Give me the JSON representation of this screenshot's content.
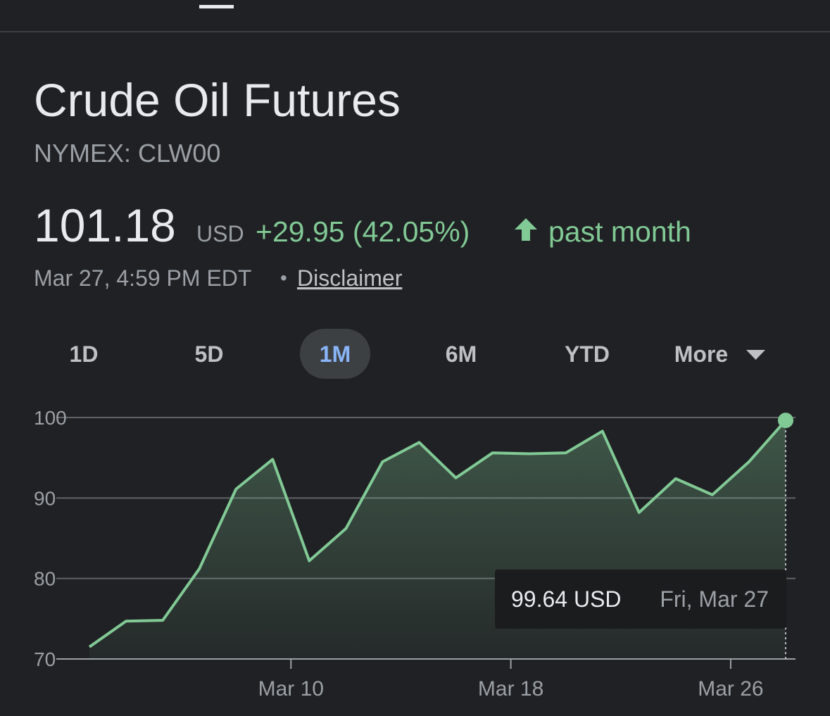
{
  "header": {
    "title": "Crude Oil Futures",
    "exchange": "NYMEX: CLW00",
    "price": "101.18",
    "currency": "USD",
    "change": "+29.95 (42.05%)",
    "period": "past month",
    "timestamp": "Mar 27, 4:59 PM EDT",
    "separator": "•",
    "disclaimer": "Disclaimer"
  },
  "ranges": {
    "items": [
      "1D",
      "5D",
      "1M",
      "6M",
      "YTD",
      "More"
    ],
    "selected": 2
  },
  "chart_data": {
    "type": "line",
    "color": "#81c995",
    "values": [
      71.5,
      74.7,
      74.8,
      81.2,
      91.1,
      94.8,
      82.2,
      86.2,
      94.5,
      96.9,
      92.5,
      95.6,
      95.5,
      95.6,
      98.3,
      88.2,
      92.4,
      90.4,
      94.5,
      99.64
    ],
    "xlim": [
      0,
      19
    ],
    "xticks": [
      {
        "value": 5.5,
        "label": "Mar 10"
      },
      {
        "value": 11.5,
        "label": "Mar 18"
      },
      {
        "value": 17.5,
        "label": "Mar 26"
      }
    ],
    "ylim": [
      70,
      100
    ],
    "yticks": [
      70,
      80,
      90,
      100
    ],
    "grid": true,
    "tooltip": {
      "value": "99.64 USD",
      "date": "Fri, Mar 27"
    }
  }
}
